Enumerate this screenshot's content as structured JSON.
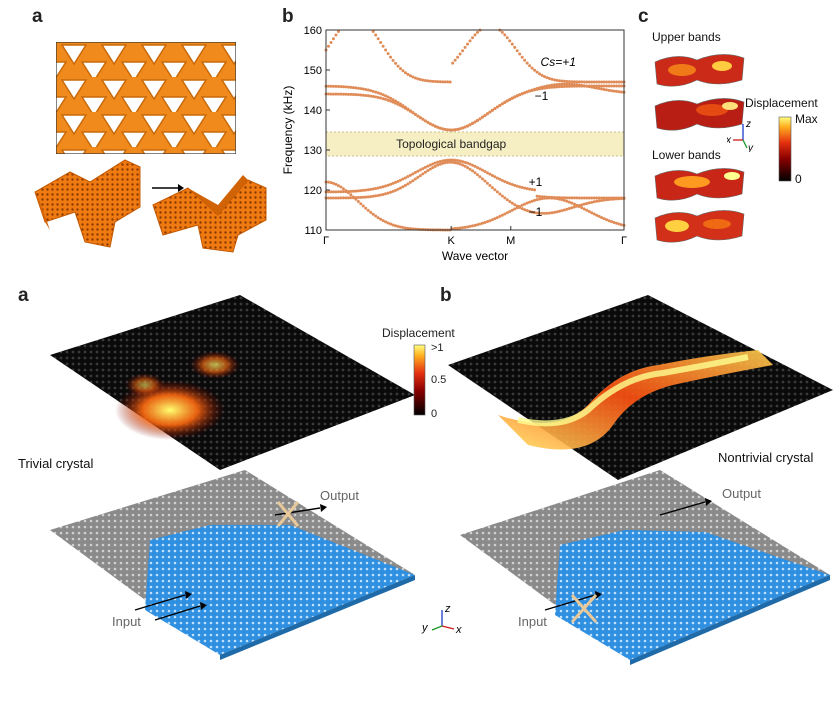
{
  "top": {
    "a_letter": "a",
    "b_letter": "b",
    "c_letter": "c"
  },
  "chart_data": {
    "type": "scatter",
    "xlabel": "Wave vector",
    "ylabel": "Frequency (kHz)",
    "ylim": [
      110,
      160
    ],
    "yticks": [
      110,
      120,
      130,
      140,
      150,
      160
    ],
    "xticks": [
      "Γ",
      "K",
      "M",
      "Γ"
    ],
    "bandgap": {
      "label": "Topological bandgap",
      "range": [
        128.5,
        134.5
      ]
    },
    "annotations": [
      {
        "text": "Cs=+1",
        "x": 0.72,
        "y": 151
      },
      {
        "text": "−1",
        "x": 0.7,
        "y": 142.5
      },
      {
        "text": "+1",
        "x": 0.68,
        "y": 121
      },
      {
        "text": "−1",
        "x": 0.68,
        "y": 113.5
      }
    ]
  },
  "panel_c": {
    "upper_label": "Upper bands",
    "lower_label": "Lower bands",
    "displacement_label": "Displacement",
    "cbar_max": "Max",
    "cbar_min": "0",
    "axes": {
      "z": "z",
      "x": "x",
      "y": "y"
    }
  },
  "bottom": {
    "a_letter": "a",
    "b_letter": "b",
    "trivial_label": "Trivial crystal",
    "nontrivial_label": "Nontrivial crystal",
    "output_label": "Output",
    "input_label": "Input",
    "cbar_title": "Displacement",
    "cbar_ticks": [
      ">1",
      "0.5",
      "0"
    ],
    "axes": {
      "z": "z",
      "x": "x",
      "y": "y"
    }
  }
}
